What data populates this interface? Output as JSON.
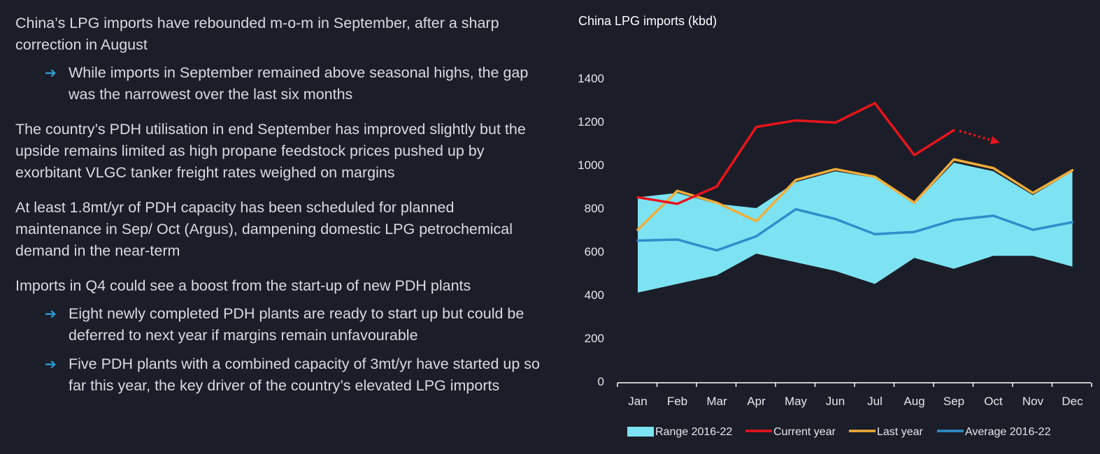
{
  "text": {
    "p1": "China’s LPG imports have rebounded m-o-m in September, after a sharp correction in August",
    "p1_b1": "While imports in September remained above seasonal highs, the gap was the narrowest over the last six months",
    "p2": "The country’s PDH utilisation in end September has improved slightly but the upside remains limited as high propane feedstock prices pushed up by exorbitant VLGC tanker freight rates weighed on margins",
    "p3": "At least 1.8mt/yr of PDH capacity has been scheduled for planned maintenance in Sep/ Oct (Argus), dampening domestic LPG petrochemical demand in the near-term",
    "p4": "Imports in Q4 could see a boost from the start-up of new PDH plants",
    "p4_b1": "Eight newly completed PDH plants are ready to start up but could be deferred to next year if margins remain unfavourable",
    "p4_b2": "Five PDH plants with a combined capacity of 3mt/yr have started up so far this year, the key driver of the country’s elevated LPG imports",
    "arrow_glyph": "➔"
  },
  "colors": {
    "background": "#1b1e28",
    "text": "#d9dbe0",
    "bullet_arrow": "#2f9bd6",
    "range_fill": "#7de3f2",
    "current_year": "#e8141c",
    "last_year": "#f1ad3a",
    "average": "#2c8fcb",
    "axis": "#ffffff"
  },
  "chart_data": {
    "type": "line",
    "title": "China LPG imports (kbd)",
    "categories": [
      "Jan",
      "Feb",
      "Mar",
      "Apr",
      "May",
      "Jun",
      "Jul",
      "Aug",
      "Sep",
      "Oct",
      "Nov",
      "Dec"
    ],
    "ylim": [
      0,
      1400
    ],
    "yticks": [
      0,
      200,
      400,
      600,
      800,
      1000,
      1200,
      1400
    ],
    "range": {
      "name": "Range 2016-22",
      "low": [
        410,
        450,
        490,
        590,
        550,
        510,
        450,
        570,
        520,
        580,
        580,
        530
      ],
      "high": [
        850,
        870,
        820,
        800,
        920,
        970,
        940,
        820,
        1010,
        970,
        860,
        970
      ]
    },
    "series": [
      {
        "name": "Current year",
        "values": [
          850,
          820,
          900,
          1175,
          1205,
          1195,
          1285,
          1045,
          1160,
          null,
          null,
          null
        ]
      },
      {
        "name": "Last year",
        "values": [
          700,
          880,
          825,
          740,
          930,
          980,
          945,
          825,
          1025,
          985,
          870,
          975
        ]
      },
      {
        "name": "Average 2016-22",
        "values": [
          650,
          655,
          605,
          670,
          795,
          750,
          680,
          690,
          745,
          765,
          700,
          735
        ]
      }
    ],
    "annotation": "dotted-arrow-projection",
    "legend_position": "bottom",
    "grid": false
  }
}
